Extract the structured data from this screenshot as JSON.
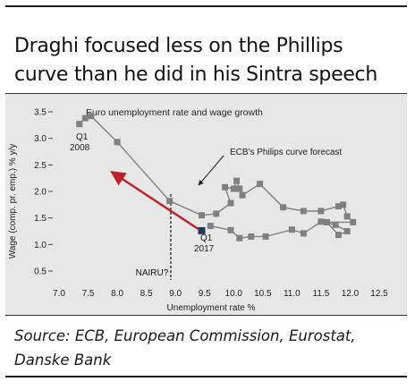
{
  "title": {
    "line1": "Draghi focused less on the Phillips",
    "line2": "curve than he did in his Sintra speech"
  },
  "source": {
    "line1": "Source: ECB, European Commission, Eurostat,",
    "line2": "Danske Bank"
  },
  "chart_data": {
    "type": "scatter",
    "title": "Euro unemployment rate and wage growth",
    "xlabel": "Unemployment rate %",
    "ylabel": "Wage (comp. pr. emp.) % y/y",
    "xlim": [
      7.0,
      12.5
    ],
    "ylim": [
      0.5,
      3.5
    ],
    "xticks": [
      "7.0",
      "7.5",
      "8.0",
      "8.5",
      "9.0",
      "9.5",
      "10.0",
      "10.5",
      "11.0",
      "11.5",
      "12.0",
      "12.5"
    ],
    "yticks": [
      "0.5",
      "1.0",
      "1.5",
      "2.0",
      "2.5",
      "3.0",
      "3.5"
    ],
    "grid": false,
    "series": [
      {
        "points": [
          [
            7.35,
            3.27
          ],
          [
            7.45,
            3.38
          ],
          [
            7.55,
            3.42
          ],
          [
            8.0,
            2.93
          ],
          [
            8.9,
            1.82
          ],
          [
            9.45,
            1.55
          ],
          [
            9.7,
            1.58
          ],
          [
            9.95,
            1.78
          ],
          [
            9.85,
            2.08
          ],
          [
            10.0,
            2.05
          ],
          [
            10.05,
            2.2
          ],
          [
            10.1,
            2.05
          ],
          [
            10.15,
            1.93
          ],
          [
            10.45,
            2.14
          ],
          [
            10.85,
            1.7
          ],
          [
            11.2,
            1.63
          ],
          [
            11.5,
            1.63
          ],
          [
            11.8,
            1.72
          ],
          [
            11.88,
            1.75
          ],
          [
            11.95,
            1.53
          ],
          [
            12.05,
            1.42
          ],
          [
            11.6,
            1.42
          ],
          [
            11.8,
            1.18
          ],
          [
            11.95,
            1.25
          ],
          [
            11.75,
            1.37
          ],
          [
            11.5,
            1.43
          ],
          [
            11.2,
            1.21
          ],
          [
            11.0,
            1.28
          ],
          [
            10.55,
            1.15
          ],
          [
            10.3,
            1.15
          ],
          [
            10.1,
            1.12
          ],
          [
            9.95,
            1.27
          ],
          [
            9.6,
            1.35
          ]
        ],
        "color": "#808080"
      },
      {
        "points": [
          [
            9.45,
            1.26
          ]
        ],
        "color": "#1f3a55"
      }
    ],
    "forecast_line": {
      "label": "ECB's Philips curve forecast",
      "from": [
        9.45,
        1.26
      ],
      "to": [
        7.9,
        2.37
      ],
      "color": "#c0202a"
    },
    "vertical_line": {
      "x": 8.92,
      "label": "NAIRU?"
    },
    "annotations": [
      {
        "id": "q1-2008",
        "line1": "Q1",
        "line2": "2008"
      },
      {
        "id": "q1-2017",
        "line1": "Q1",
        "line2": "2017"
      }
    ]
  }
}
